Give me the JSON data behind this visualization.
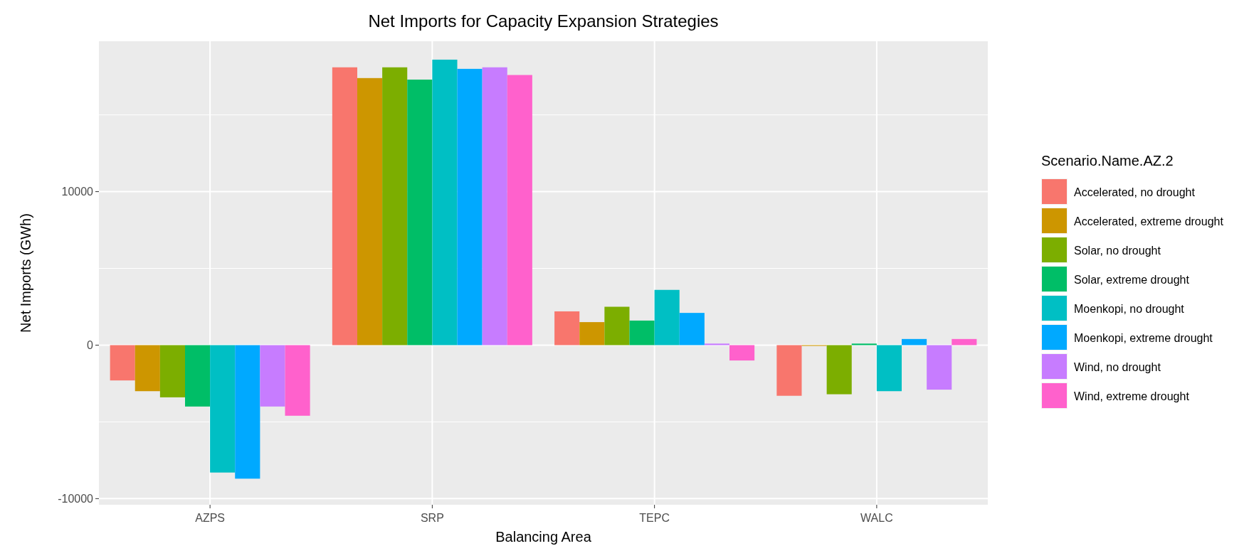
{
  "chart_data": {
    "type": "bar",
    "title": "Net Imports for Capacity Expansion Strategies",
    "xlabel": "Balancing Area",
    "ylabel": "Net Imports (GWh)",
    "legend_title": "Scenario.Name.AZ.2",
    "categories": [
      "AZPS",
      "SRP",
      "TEPC",
      "WALC"
    ],
    "ylim": [
      -10400,
      19800
    ],
    "yticks": [
      -10000,
      0,
      10000
    ],
    "grid": true,
    "legend": "right",
    "series": [
      {
        "name": "Accelerated, no drought",
        "color": "#f8766d",
        "values": [
          -2300,
          18100,
          2200,
          -3300
        ]
      },
      {
        "name": "Accelerated, extreme drought",
        "color": "#cd9600",
        "values": [
          -3000,
          17400,
          1500,
          -50
        ]
      },
      {
        "name": "Solar, no drought",
        "color": "#7cae00",
        "values": [
          -3400,
          18100,
          2500,
          -3200
        ]
      },
      {
        "name": "Solar, extreme drought",
        "color": "#00be67",
        "values": [
          -4000,
          17300,
          1600,
          100
        ]
      },
      {
        "name": "Moenkopi, no drought",
        "color": "#00bfc4",
        "values": [
          -8300,
          18600,
          3600,
          -3000
        ]
      },
      {
        "name": "Moenkopi, extreme drought",
        "color": "#00a9ff",
        "values": [
          -8700,
          18000,
          2100,
          400
        ]
      },
      {
        "name": "Wind, no drought",
        "color": "#c77cff",
        "values": [
          -4000,
          18100,
          100,
          -2900
        ]
      },
      {
        "name": "Wind, extreme drought",
        "color": "#ff61cc",
        "values": [
          -4600,
          17600,
          -1000,
          400
        ]
      }
    ]
  }
}
